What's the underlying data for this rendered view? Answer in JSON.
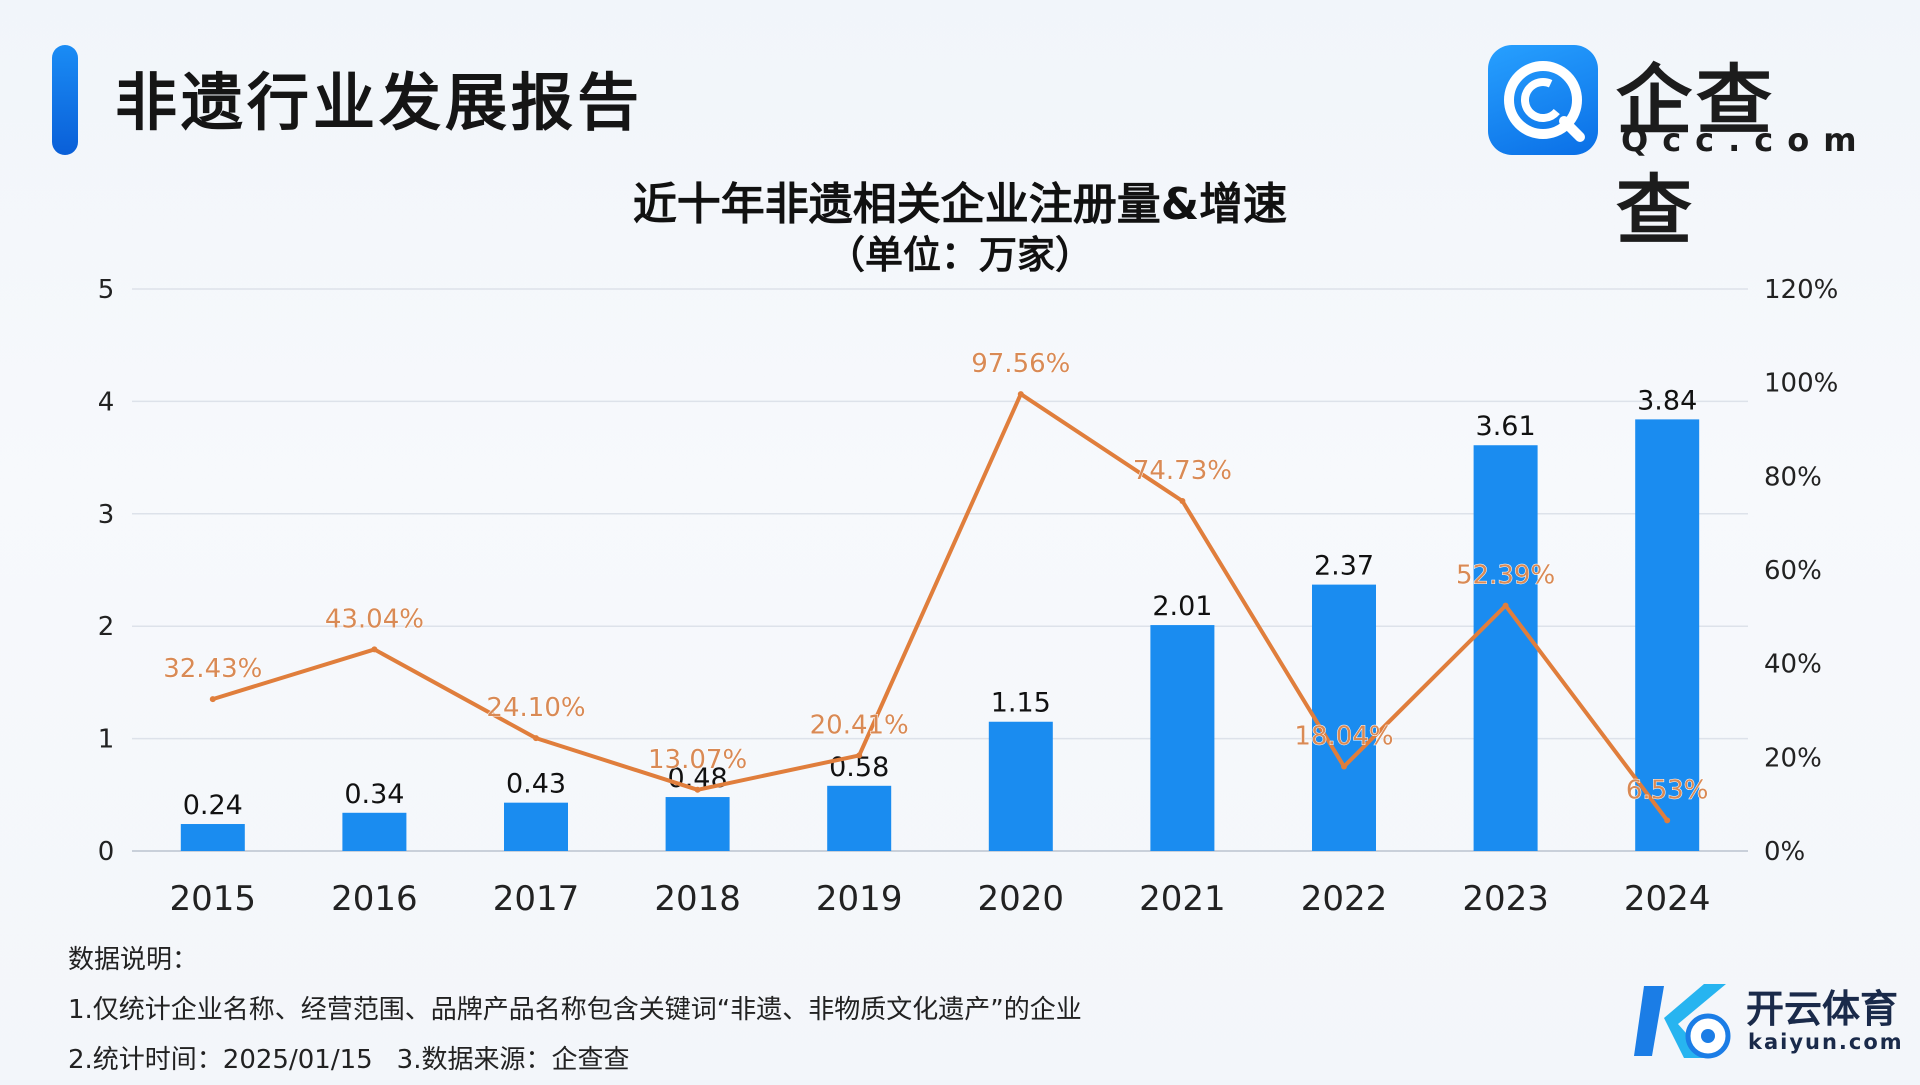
{
  "header": {
    "title": "非遗行业发展报告"
  },
  "brand": {
    "name": "企查查",
    "domain": "Qcc.com",
    "icon": "qcc-logo-icon"
  },
  "notes": {
    "heading": "数据说明：",
    "line1": "1.仅统计企业名称、经营范围、品牌产品名称包含关键词“非遗、非物质文化遗产”的企业",
    "line2a": "2.统计时间：2025/01/15",
    "line2b": "3.数据来源：企查查"
  },
  "watermark": {
    "name": "开云体育",
    "domain": "kaiyun.com"
  },
  "colors": {
    "bar": "#1a8cf0",
    "line": "#e07e3c",
    "line_label": "#d98a55",
    "grid": "#dde2ea",
    "axis_text": "#222222"
  },
  "chart_data": {
    "type": "bar",
    "title": "近十年非遗相关企业注册量&增速",
    "subtitle": "（单位：万家）",
    "categories": [
      "2015",
      "2016",
      "2017",
      "2018",
      "2019",
      "2020",
      "2021",
      "2022",
      "2023",
      "2024"
    ],
    "series": [
      {
        "name": "注册量",
        "type": "bar",
        "axis": "left",
        "values": [
          0.24,
          0.34,
          0.43,
          0.48,
          0.58,
          1.15,
          2.01,
          2.37,
          3.61,
          3.84
        ],
        "labels": [
          "0.24",
          "0.34",
          "0.43",
          "0.48",
          "0.58",
          "1.15",
          "2.01",
          "2.37",
          "3.61",
          "3.84"
        ]
      },
      {
        "name": "增速",
        "type": "line",
        "axis": "right",
        "values": [
          32.43,
          43.04,
          24.1,
          13.07,
          20.41,
          97.56,
          74.73,
          18.04,
          52.39,
          6.53
        ],
        "labels": [
          "32.43%",
          "43.04%",
          "24.10%",
          "13.07%",
          "20.41%",
          "97.56%",
          "74.73%",
          "18.04%",
          "52.39%",
          "6.53%"
        ]
      }
    ],
    "y_left": {
      "min": 0,
      "max": 5,
      "ticks": [
        "0",
        "1",
        "2",
        "3",
        "4",
        "5"
      ],
      "label": ""
    },
    "y_right": {
      "min": 0,
      "max": 120,
      "ticks": [
        "0%",
        "20%",
        "40%",
        "60%",
        "80%",
        "100%",
        "120%"
      ],
      "label": ""
    },
    "xlabel": "",
    "grid": true,
    "legend": "none"
  }
}
